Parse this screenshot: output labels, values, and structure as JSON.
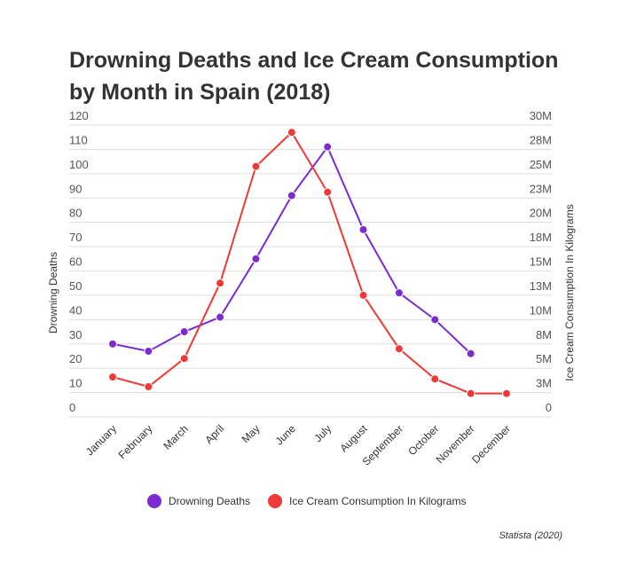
{
  "chart_data": {
    "type": "line",
    "title": "Drowning Deaths and Ice Cream Consumption by Month in Spain (2018)",
    "categories": [
      "January",
      "February",
      "March",
      "April",
      "May",
      "June",
      "July",
      "August",
      "September",
      "October",
      "November",
      "December"
    ],
    "y_left": {
      "label": "Drowning Deaths",
      "range": [
        0,
        120
      ],
      "ticks": [
        "0",
        "10",
        "20",
        "30",
        "40",
        "50",
        "60",
        "70",
        "80",
        "90",
        "100",
        "110",
        "120"
      ]
    },
    "y_right": {
      "label": "Ice Cream Consumption In Kilograms",
      "range": [
        0,
        30000000
      ],
      "ticks": [
        "0",
        "3M",
        "5M",
        "8M",
        "10M",
        "13M",
        "15M",
        "18M",
        "20M",
        "23M",
        "25M",
        "28M",
        "30M"
      ]
    },
    "grid": true,
    "legend_placement": "bottom",
    "series": [
      {
        "name": "Drowning Deaths",
        "axis": "left",
        "color": "#7b2bd0",
        "values": [
          30,
          27,
          35,
          41,
          65,
          91,
          111,
          77,
          51,
          40,
          26,
          null
        ]
      },
      {
        "name": "Ice Cream Consumption In Kilograms",
        "axis": "right",
        "color": "#ee3a36",
        "values": [
          4100000,
          3100000,
          6000000,
          13750000,
          25750000,
          29250000,
          23100000,
          12500000,
          7000000,
          3900000,
          2400000,
          2400000
        ]
      }
    ],
    "source": "Statista (2020)"
  }
}
